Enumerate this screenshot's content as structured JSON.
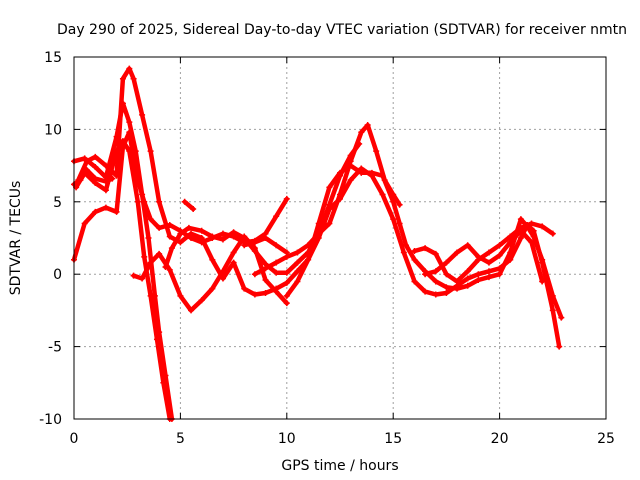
{
  "chart_data": {
    "type": "scatter",
    "title": "Day 290 of 2025, Sidereal Day-to-day VTEC variation (SDTVAR) for receiver nmtn",
    "xlabel": "GPS time / hours",
    "ylabel": "SDTVAR / TECUs",
    "xlim": [
      0,
      25
    ],
    "ylim": [
      -10,
      15
    ],
    "xticks": [
      "0",
      "5",
      "10",
      "15",
      "20",
      "25"
    ],
    "yticks": [
      "-10",
      "-5",
      "0",
      "5",
      "10",
      "15"
    ],
    "grid": true,
    "marker": "+",
    "color": "#ff0000",
    "series": [
      {
        "name": "trace-1",
        "points": [
          [
            0.0,
            1.0
          ],
          [
            0.5,
            3.5
          ],
          [
            1.0,
            4.3
          ],
          [
            1.5,
            4.6
          ],
          [
            2.0,
            4.3
          ],
          [
            2.3,
            8.8
          ],
          [
            2.6,
            9.8
          ],
          [
            2.8,
            8.0
          ],
          [
            3.0,
            6.5
          ],
          [
            3.3,
            5.0
          ],
          [
            3.6,
            3.8
          ],
          [
            4.0,
            3.2
          ],
          [
            4.5,
            3.4
          ],
          [
            5.0,
            3.0
          ],
          [
            5.5,
            2.5
          ],
          [
            6.0,
            2.2
          ],
          [
            6.5,
            2.5
          ],
          [
            7.0,
            2.8
          ],
          [
            7.5,
            2.6
          ],
          [
            8.0,
            2.2
          ],
          [
            8.5,
            2.3
          ],
          [
            9.0,
            2.8
          ],
          [
            9.5,
            4.0
          ],
          [
            10.0,
            5.2
          ]
        ]
      },
      {
        "name": "trace-2",
        "points": [
          [
            0.0,
            7.8
          ],
          [
            0.5,
            8.0
          ],
          [
            1.0,
            7.4
          ],
          [
            1.5,
            6.7
          ],
          [
            2.0,
            9.5
          ],
          [
            2.3,
            11.8
          ],
          [
            2.6,
            10.5
          ],
          [
            2.9,
            8.5
          ],
          [
            3.2,
            5.5
          ],
          [
            3.5,
            2.5
          ],
          [
            3.8,
            -1.5
          ],
          [
            4.0,
            -4.0
          ],
          [
            4.3,
            -7.0
          ],
          [
            4.6,
            -10.0
          ]
        ]
      },
      {
        "name": "trace-3",
        "points": [
          [
            0.2,
            6.5
          ],
          [
            0.6,
            7.8
          ],
          [
            1.0,
            8.1
          ],
          [
            1.5,
            7.5
          ],
          [
            2.0,
            6.8
          ],
          [
            2.3,
            13.5
          ],
          [
            2.6,
            14.2
          ],
          [
            2.8,
            13.5
          ],
          [
            3.2,
            11.0
          ],
          [
            3.6,
            8.5
          ],
          [
            4.0,
            5.0
          ],
          [
            4.5,
            2.6
          ],
          [
            5.0,
            2.2
          ],
          [
            5.5,
            2.8
          ],
          [
            6.0,
            2.5
          ],
          [
            6.5,
            1.0
          ],
          [
            7.0,
            -0.3
          ],
          [
            7.5,
            0.8
          ],
          [
            8.0,
            -1.0
          ],
          [
            8.5,
            -1.4
          ],
          [
            9.0,
            -1.3
          ],
          [
            9.5,
            -1.0
          ],
          [
            10.0,
            -0.6
          ],
          [
            10.5,
            0.2
          ],
          [
            11.0,
            1.0
          ],
          [
            11.5,
            2.5
          ],
          [
            12.0,
            4.5
          ],
          [
            12.5,
            5.2
          ],
          [
            13.0,
            6.5
          ],
          [
            13.5,
            7.3
          ],
          [
            14.0,
            6.8
          ],
          [
            14.5,
            5.5
          ],
          [
            15.0,
            3.8
          ],
          [
            15.5,
            1.5
          ],
          [
            16.0,
            -0.5
          ],
          [
            16.5,
            -1.2
          ],
          [
            17.0,
            -1.4
          ],
          [
            17.5,
            -1.3
          ],
          [
            18.0,
            -0.8
          ],
          [
            18.5,
            -0.3
          ],
          [
            19.0,
            0.0
          ],
          [
            19.5,
            0.2
          ],
          [
            20.0,
            0.4
          ],
          [
            20.5,
            1.0
          ],
          [
            21.0,
            2.5
          ],
          [
            21.3,
            3.4
          ],
          [
            21.6,
            3.0
          ],
          [
            22.0,
            0.8
          ],
          [
            22.5,
            -2.5
          ],
          [
            22.8,
            -5.0
          ]
        ]
      },
      {
        "name": "trace-4",
        "points": [
          [
            0.1,
            6.0
          ],
          [
            0.5,
            7.0
          ],
          [
            1.0,
            6.3
          ],
          [
            1.5,
            5.8
          ],
          [
            2.0,
            8.5
          ],
          [
            2.3,
            9.2
          ],
          [
            2.6,
            8.5
          ],
          [
            3.0,
            5.0
          ],
          [
            3.3,
            1.2
          ],
          [
            3.6,
            -1.5
          ],
          [
            3.9,
            -4.5
          ],
          [
            4.2,
            -7.5
          ],
          [
            4.5,
            -10.0
          ]
        ]
      },
      {
        "name": "trace-5",
        "points": [
          [
            2.8,
            -0.1
          ],
          [
            3.2,
            -0.3
          ],
          [
            3.6,
            0.8
          ],
          [
            4.0,
            1.4
          ],
          [
            4.5,
            0.3
          ],
          [
            5.0,
            -1.5
          ],
          [
            5.5,
            -2.5
          ],
          [
            6.0,
            -1.8
          ],
          [
            6.5,
            -1.0
          ],
          [
            7.0,
            0.2
          ],
          [
            7.5,
            1.5
          ],
          [
            8.0,
            2.6
          ],
          [
            8.5,
            1.8
          ],
          [
            9.0,
            -0.4
          ],
          [
            9.5,
            -1.2
          ],
          [
            10.0,
            -2.0
          ]
        ]
      },
      {
        "name": "trace-6",
        "points": [
          [
            8.5,
            0.0
          ],
          [
            9.0,
            0.4
          ],
          [
            9.5,
            0.8
          ],
          [
            10.0,
            1.2
          ],
          [
            10.5,
            1.5
          ],
          [
            11.0,
            2.0
          ],
          [
            11.5,
            2.8
          ],
          [
            12.0,
            3.5
          ],
          [
            12.5,
            5.5
          ],
          [
            13.0,
            7.8
          ],
          [
            13.5,
            9.8
          ],
          [
            13.8,
            10.3
          ],
          [
            14.2,
            8.5
          ],
          [
            14.6,
            6.5
          ],
          [
            15.0,
            5.5
          ],
          [
            15.3,
            4.8
          ]
        ]
      },
      {
        "name": "trace-7",
        "points": [
          [
            10.0,
            -1.5
          ],
          [
            10.5,
            -0.5
          ],
          [
            11.0,
            1.0
          ],
          [
            11.5,
            3.5
          ],
          [
            12.0,
            6.0
          ],
          [
            12.5,
            7.0
          ],
          [
            13.0,
            7.5
          ],
          [
            13.5,
            7.0
          ],
          [
            14.0,
            7.0
          ],
          [
            14.5,
            6.8
          ],
          [
            15.0,
            5.0
          ],
          [
            15.3,
            3.5
          ],
          [
            15.6,
            2.0
          ],
          [
            16.0,
            1.0
          ],
          [
            16.5,
            0.2
          ],
          [
            17.0,
            -0.5
          ],
          [
            17.5,
            -0.9
          ],
          [
            18.0,
            -1.0
          ],
          [
            18.5,
            -0.8
          ],
          [
            19.0,
            -0.4
          ],
          [
            19.5,
            -0.2
          ],
          [
            20.0,
            0.0
          ],
          [
            20.5,
            1.5
          ],
          [
            21.0,
            3.8
          ],
          [
            21.3,
            3.3
          ],
          [
            21.6,
            2.6
          ],
          [
            22.0,
            1.0
          ],
          [
            22.5,
            -1.5
          ],
          [
            22.9,
            -3.0
          ]
        ]
      },
      {
        "name": "trace-8",
        "points": [
          [
            4.3,
            0.5
          ],
          [
            4.6,
            1.8
          ],
          [
            5.0,
            2.8
          ],
          [
            5.4,
            3.2
          ],
          [
            6.0,
            3.0
          ],
          [
            6.5,
            2.6
          ],
          [
            7.0,
            2.4
          ],
          [
            7.5,
            2.9
          ],
          [
            8.0,
            2.5
          ],
          [
            8.5,
            1.6
          ],
          [
            9.0,
            0.7
          ],
          [
            9.5,
            0.1
          ],
          [
            10.0,
            0.1
          ],
          [
            10.5,
            0.8
          ],
          [
            11.0,
            1.5
          ],
          [
            11.5,
            2.8
          ],
          [
            12.0,
            4.8
          ],
          [
            12.5,
            6.8
          ],
          [
            13.0,
            8.2
          ],
          [
            13.4,
            9.0
          ]
        ]
      },
      {
        "name": "trace-9",
        "points": [
          [
            16.5,
            0.0
          ],
          [
            17.0,
            0.2
          ],
          [
            17.5,
            0.8
          ],
          [
            18.0,
            1.5
          ],
          [
            18.5,
            2.0
          ],
          [
            19.0,
            1.2
          ],
          [
            19.5,
            0.8
          ],
          [
            20.0,
            1.3
          ],
          [
            20.5,
            2.2
          ],
          [
            21.0,
            3.0
          ],
          [
            21.5,
            2.2
          ],
          [
            22.0,
            -0.5
          ]
        ]
      },
      {
        "name": "trace-10",
        "points": [
          [
            16.0,
            1.6
          ],
          [
            16.5,
            1.8
          ],
          [
            17.0,
            1.4
          ],
          [
            17.5,
            0.0
          ],
          [
            18.0,
            -0.5
          ],
          [
            18.5,
            0.2
          ],
          [
            19.0,
            1.0
          ],
          [
            19.5,
            1.5
          ],
          [
            20.0,
            2.0
          ],
          [
            20.5,
            2.6
          ],
          [
            21.0,
            3.2
          ],
          [
            21.5,
            3.5
          ],
          [
            22.0,
            3.3
          ],
          [
            22.5,
            2.8
          ]
        ]
      },
      {
        "name": "trace-11",
        "points": [
          [
            8.0,
            2.0
          ],
          [
            8.5,
            2.2
          ],
          [
            9.0,
            2.5
          ],
          [
            9.5,
            2.0
          ],
          [
            10.0,
            1.5
          ]
        ]
      },
      {
        "name": "trace-12",
        "points": [
          [
            5.2,
            5.0
          ],
          [
            5.6,
            4.5
          ]
        ]
      },
      {
        "name": "trace-13",
        "points": [
          [
            0.0,
            6.2
          ],
          [
            0.3,
            6.5
          ],
          [
            0.6,
            7.2
          ],
          [
            1.0,
            6.6
          ],
          [
            1.5,
            6.4
          ],
          [
            1.8,
            6.6
          ]
        ]
      }
    ]
  }
}
